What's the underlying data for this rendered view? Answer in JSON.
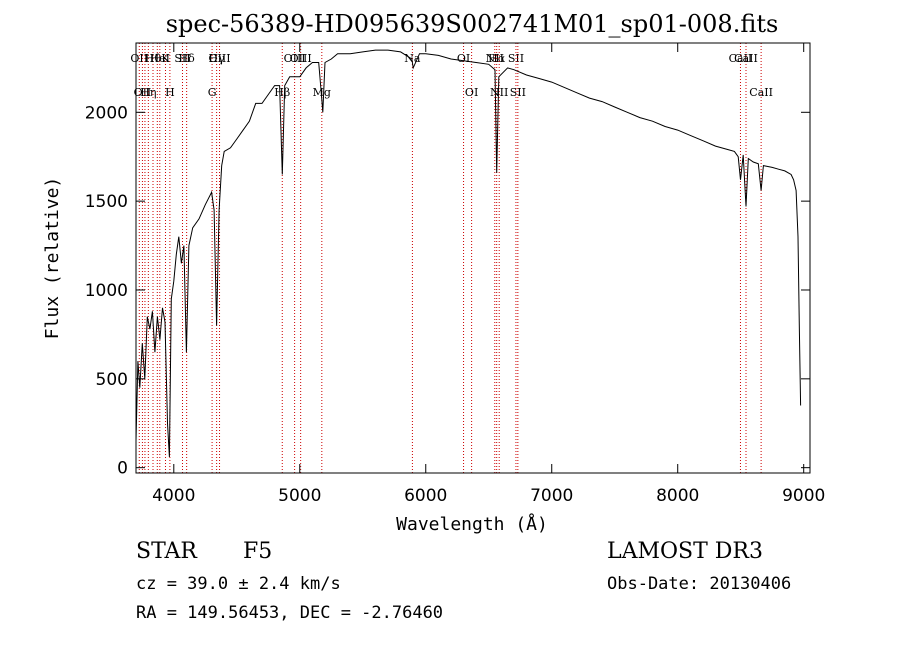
{
  "colors": {
    "line": "#000000",
    "marker": "#cc0000",
    "background": "#ffffff"
  },
  "chart_data": {
    "type": "line",
    "title": "spec-56389-HD095639S002741M01_sp01-008.fits",
    "xlabel": "Wavelength (Å)",
    "ylabel": "Flux (relative)",
    "xlim": [
      3700,
      9050
    ],
    "ylim": [
      -30,
      2390
    ],
    "x_ticks": [
      4000,
      5000,
      6000,
      7000,
      8000,
      9000
    ],
    "y_ticks": [
      0,
      500,
      1000,
      1500,
      2000
    ],
    "series": [
      {
        "name": "flux",
        "points": [
          [
            3700,
            150
          ],
          [
            3715,
            600
          ],
          [
            3730,
            450
          ],
          [
            3750,
            700
          ],
          [
            3770,
            500
          ],
          [
            3790,
            850
          ],
          [
            3810,
            780
          ],
          [
            3830,
            880
          ],
          [
            3850,
            650
          ],
          [
            3870,
            850
          ],
          [
            3890,
            720
          ],
          [
            3910,
            900
          ],
          [
            3930,
            820
          ],
          [
            3950,
            250
          ],
          [
            3965,
            60
          ],
          [
            3980,
            950
          ],
          [
            4000,
            1050
          ],
          [
            4020,
            1200
          ],
          [
            4040,
            1300
          ],
          [
            4060,
            1150
          ],
          [
            4080,
            1250
          ],
          [
            4100,
            650
          ],
          [
            4120,
            1250
          ],
          [
            4150,
            1350
          ],
          [
            4200,
            1400
          ],
          [
            4250,
            1480
          ],
          [
            4300,
            1550
          ],
          [
            4320,
            1450
          ],
          [
            4340,
            800
          ],
          [
            4360,
            1450
          ],
          [
            4380,
            1700
          ],
          [
            4400,
            1780
          ],
          [
            4450,
            1800
          ],
          [
            4500,
            1850
          ],
          [
            4550,
            1900
          ],
          [
            4600,
            1950
          ],
          [
            4650,
            2050
          ],
          [
            4700,
            2050
          ],
          [
            4750,
            2100
          ],
          [
            4800,
            2150
          ],
          [
            4840,
            2150
          ],
          [
            4861,
            1650
          ],
          [
            4880,
            2150
          ],
          [
            4920,
            2200
          ],
          [
            4960,
            2200
          ],
          [
            5000,
            2200
          ],
          [
            5050,
            2250
          ],
          [
            5100,
            2280
          ],
          [
            5150,
            2280
          ],
          [
            5172,
            2100
          ],
          [
            5183,
            2000
          ],
          [
            5200,
            2280
          ],
          [
            5250,
            2300
          ],
          [
            5300,
            2330
          ],
          [
            5400,
            2330
          ],
          [
            5500,
            2340
          ],
          [
            5600,
            2350
          ],
          [
            5700,
            2350
          ],
          [
            5800,
            2340
          ],
          [
            5890,
            2300
          ],
          [
            5900,
            2250
          ],
          [
            5950,
            2330
          ],
          [
            6000,
            2330
          ],
          [
            6100,
            2320
          ],
          [
            6200,
            2300
          ],
          [
            6300,
            2290
          ],
          [
            6400,
            2280
          ],
          [
            6500,
            2270
          ],
          [
            6550,
            2240
          ],
          [
            6563,
            1660
          ],
          [
            6580,
            2200
          ],
          [
            6650,
            2250
          ],
          [
            6700,
            2240
          ],
          [
            6800,
            2210
          ],
          [
            6900,
            2190
          ],
          [
            7000,
            2170
          ],
          [
            7100,
            2140
          ],
          [
            7200,
            2110
          ],
          [
            7300,
            2080
          ],
          [
            7400,
            2060
          ],
          [
            7500,
            2030
          ],
          [
            7600,
            2000
          ],
          [
            7700,
            1970
          ],
          [
            7800,
            1950
          ],
          [
            7900,
            1920
          ],
          [
            8000,
            1900
          ],
          [
            8100,
            1870
          ],
          [
            8200,
            1840
          ],
          [
            8300,
            1810
          ],
          [
            8400,
            1790
          ],
          [
            8450,
            1780
          ],
          [
            8480,
            1750
          ],
          [
            8498,
            1620
          ],
          [
            8520,
            1760
          ],
          [
            8542,
            1470
          ],
          [
            8560,
            1740
          ],
          [
            8600,
            1720
          ],
          [
            8640,
            1710
          ],
          [
            8662,
            1560
          ],
          [
            8680,
            1700
          ],
          [
            8750,
            1690
          ],
          [
            8800,
            1680
          ],
          [
            8850,
            1670
          ],
          [
            8900,
            1650
          ],
          [
            8920,
            1620
          ],
          [
            8940,
            1560
          ],
          [
            8955,
            1300
          ],
          [
            8965,
            800
          ],
          [
            8975,
            350
          ]
        ]
      }
    ],
    "line_markers": [
      {
        "wavelength": 3726,
        "row1": "OII",
        "row2": ""
      },
      {
        "wavelength": 3751,
        "row1": "",
        "row2": "OII"
      },
      {
        "wavelength": 3771,
        "row1": "",
        "row2": ""
      },
      {
        "wavelength": 3798,
        "row1": "",
        "row2": "Hη"
      },
      {
        "wavelength": 3835,
        "row1": "Hθ",
        "row2": ""
      },
      {
        "wavelength": 3869,
        "row1": "",
        "row2": ""
      },
      {
        "wavelength": 3889,
        "row1": "HeI",
        "row2": ""
      },
      {
        "wavelength": 3934,
        "row1": "K",
        "row2": ""
      },
      {
        "wavelength": 3969,
        "row1": "",
        "row2": "H"
      },
      {
        "wavelength": 4069,
        "row1": "SII",
        "row2": ""
      },
      {
        "wavelength": 4102,
        "row1": "Hδ",
        "row2": ""
      },
      {
        "wavelength": 4304,
        "row1": "",
        "row2": "G"
      },
      {
        "wavelength": 4340,
        "row1": "Hγ",
        "row2": ""
      },
      {
        "wavelength": 4363,
        "row1": "OIII",
        "row2": ""
      },
      {
        "wavelength": 4861,
        "row1": "",
        "row2": "Hβ"
      },
      {
        "wavelength": 4959,
        "row1": "OIII",
        "row2": ""
      },
      {
        "wavelength": 5007,
        "row1": "OIII",
        "row2": ""
      },
      {
        "wavelength": 5175,
        "row1": "",
        "row2": "Mg"
      },
      {
        "wavelength": 5894,
        "row1": "Na",
        "row2": ""
      },
      {
        "wavelength": 6300,
        "row1": "OI",
        "row2": ""
      },
      {
        "wavelength": 6364,
        "row1": "",
        "row2": "OI"
      },
      {
        "wavelength": 6548,
        "row1": "NII",
        "row2": ""
      },
      {
        "wavelength": 6563,
        "row1": "Hα",
        "row2": ""
      },
      {
        "wavelength": 6583,
        "row1": "",
        "row2": "NII"
      },
      {
        "wavelength": 6716,
        "row1": "SII",
        "row2": ""
      },
      {
        "wavelength": 6731,
        "row1": "",
        "row2": "SII"
      },
      {
        "wavelength": 8498,
        "row1": "CaII",
        "row2": ""
      },
      {
        "wavelength": 8542,
        "row1": "CaII",
        "row2": ""
      },
      {
        "wavelength": 8662,
        "row1": "",
        "row2": "CaII"
      }
    ]
  },
  "info": {
    "object_class": "STAR",
    "subclass": "F5",
    "survey": "LAMOST DR3",
    "redshift": "cz = 39.0 ± 2.4 km/s",
    "obs_date": "Obs-Date: 20130406",
    "coords": "RA = 149.56453, DEC =  -2.76460"
  }
}
